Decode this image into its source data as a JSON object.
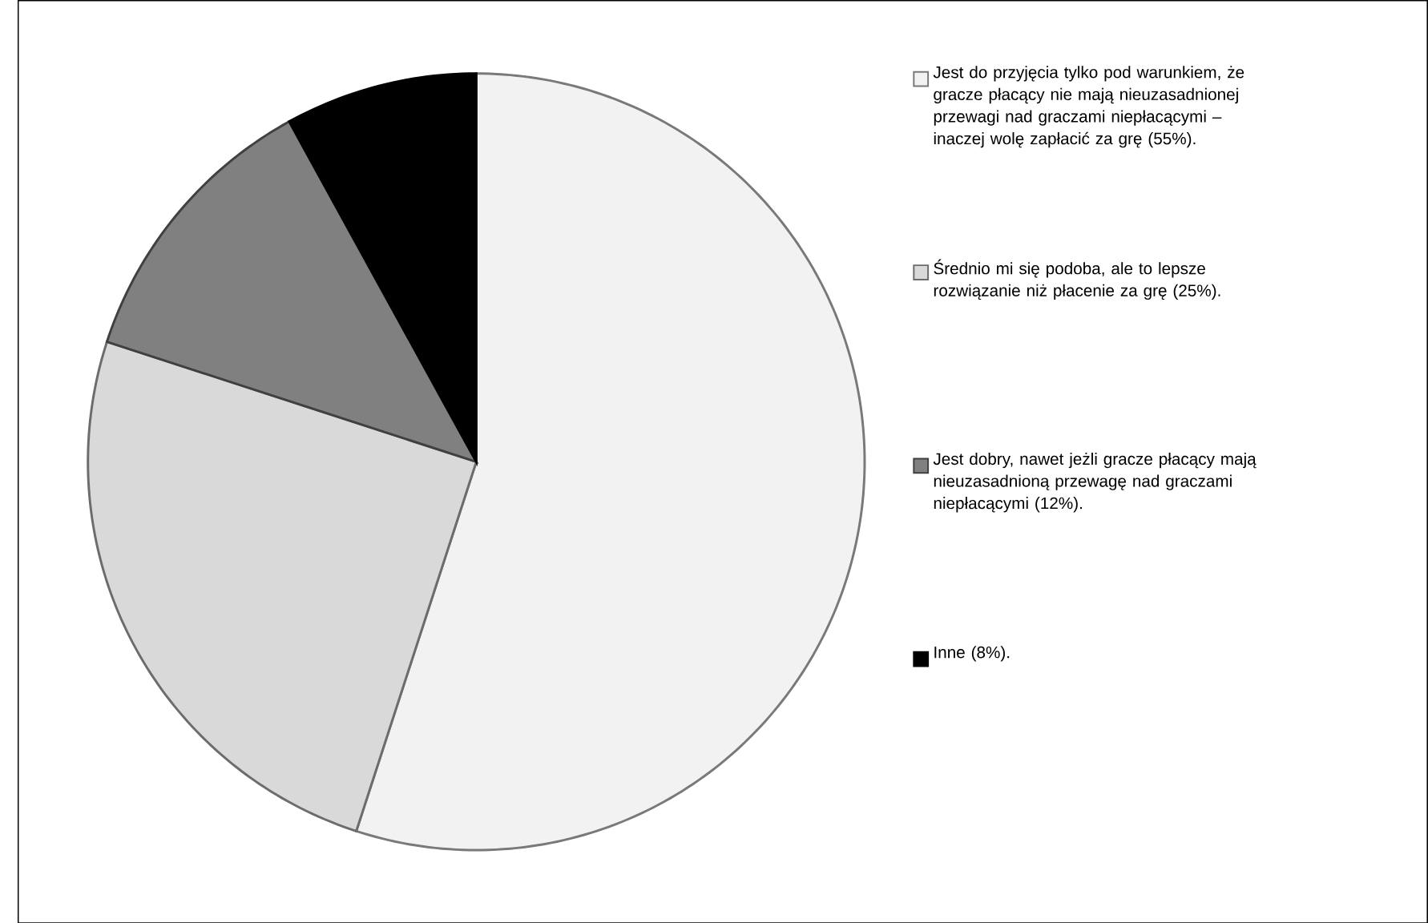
{
  "chart_data": {
    "type": "pie",
    "categories": [
      "Jest do przyjęcia tylko pod warunkiem, że gracze płacący nie mają nieuzasadnionej przewagi nad graczami niepłacącymi – inaczej wolę zapłacić za grę (55%).",
      "Średnio mi się podoba, ale to lepsze rozwiązanie niż płacenie za grę (25%).",
      "Jest dobry, nawet jeżli gracze płacący mają nieuzasadnioną przewagę nad graczami niepłacącymi (12%).",
      "Inne (8%)."
    ],
    "values": [
      55,
      25,
      12,
      8
    ],
    "colors": [
      "#f2f2f2",
      "#d9d9d9",
      "#808080",
      "#000000"
    ],
    "legend": "right"
  }
}
